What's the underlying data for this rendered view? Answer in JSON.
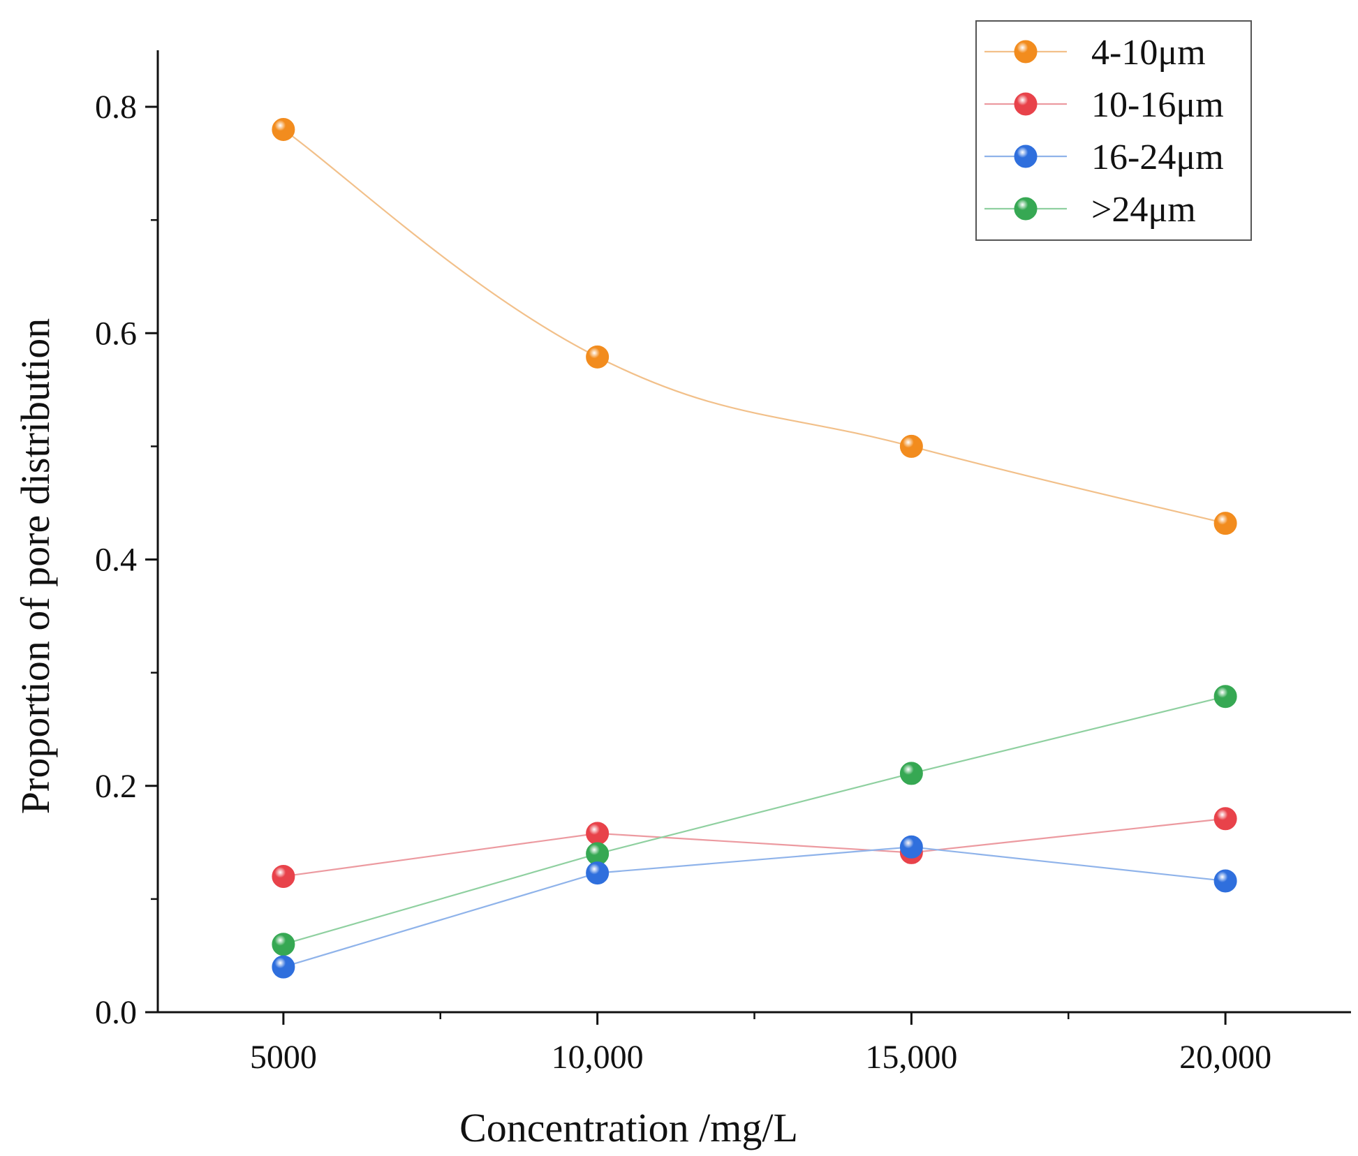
{
  "chart_data": {
    "type": "line",
    "title": "",
    "xlabel": "Concentration /mg/L",
    "ylabel": "Proportion of pore distribution",
    "x": [
      5000,
      10000,
      15000,
      20000
    ],
    "xtick_labels": [
      "5000",
      "10,000",
      "15,000",
      "20,000"
    ],
    "xlim": [
      3000,
      22000
    ],
    "ylim": [
      0,
      0.85
    ],
    "yticks": [
      0.0,
      0.2,
      0.4,
      0.6,
      0.8
    ],
    "ytick_labels": [
      "0.0",
      "0.2",
      "0.4",
      "0.6",
      "0.8"
    ],
    "grid": false,
    "legend_position": "top-right",
    "series": [
      {
        "name": "4-10μm",
        "color": "#f28c1e",
        "line_color": "#f2c08a",
        "smooth": true,
        "values": [
          0.78,
          0.579,
          0.5,
          0.432
        ]
      },
      {
        "name": "10-16μm",
        "color": "#e8424a",
        "line_color": "#ec9aa0",
        "smooth": false,
        "values": [
          0.12,
          0.158,
          0.141,
          0.171
        ]
      },
      {
        "name": "16-24μm",
        "color": "#2f6fdd",
        "line_color": "#8fb3ea",
        "smooth": false,
        "values": [
          0.04,
          0.123,
          0.146,
          0.116
        ]
      },
      {
        "name": ">24μm",
        "color": "#36a853",
        "line_color": "#8fd0a0",
        "smooth": false,
        "values": [
          0.06,
          0.14,
          0.211,
          0.279
        ]
      }
    ]
  }
}
